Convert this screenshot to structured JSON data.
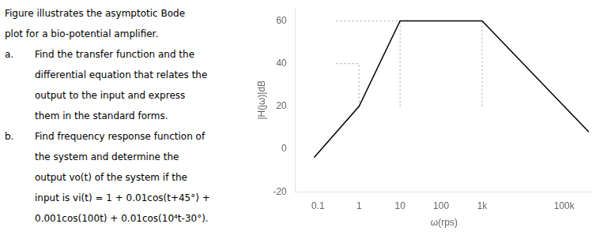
{
  "chart_data": {
    "type": "line",
    "log": "x",
    "grid": false,
    "x_label": "ω(rps)",
    "y_label": "|H(jω)|dB",
    "xlim": [
      0.028,
      500000
    ],
    "xticks": [
      0.1,
      1,
      10,
      100,
      {
        "value": 1000,
        "label": "1k"
      },
      {
        "value": 100000,
        "label": "100k"
      }
    ],
    "ylim": [
      -20,
      66
    ],
    "yticks": [
      -20,
      0,
      20,
      40,
      60
    ],
    "series": [
      {
        "x": [
          0.08,
          1,
          10,
          1000,
          100000,
          400000
        ],
        "values": [
          -4,
          20,
          60,
          60,
          20,
          8
        ],
        "color": "#000000",
        "line_style": "solid"
      },
      {
        "x": [
          1,
          1
        ],
        "values": [
          20,
          40
        ],
        "color": "#aaaaaa",
        "line_style": "dotted"
      },
      {
        "x": [
          0.28,
          1
        ],
        "values": [
          40,
          40
        ],
        "color": "#aaaaaa",
        "line_style": "dotted"
      },
      {
        "x": [
          10,
          10
        ],
        "values": [
          20,
          60
        ],
        "color": "#aaaaaa",
        "line_style": "dotted"
      },
      {
        "x": [
          0.28,
          1000
        ],
        "values": [
          60,
          60
        ],
        "color": "#aaaaaa",
        "line_style": "dotted"
      },
      {
        "x": [
          1000,
          1000
        ],
        "values": [
          20,
          60
        ],
        "color": "#aaaaaa",
        "line_style": "dotted"
      }
    ],
    "annotations": [
      {
        "text": "Figure illustrates the asymptotic Bode"
      },
      {
        "text": "plot for a bio-potential amplifier."
      },
      {
        "label": "a.",
        "text": "Find the transfer function and the"
      },
      {
        "text": "differential equation that relates the"
      },
      {
        "text": "output to the input and express"
      },
      {
        "text": "them in the standard forms."
      },
      {
        "label": "b.",
        "text": "Find frequency response function of"
      },
      {
        "text": "the system and determine the"
      },
      {
        "text": "output vo(t) of the system if the"
      },
      {
        "text": "input is vi(t) = 1 + 0.01cos(t+45°) +"
      },
      {
        "text": "0.001cos(100t) + 0.01cos(10⁴t-30°)."
      }
    ]
  }
}
